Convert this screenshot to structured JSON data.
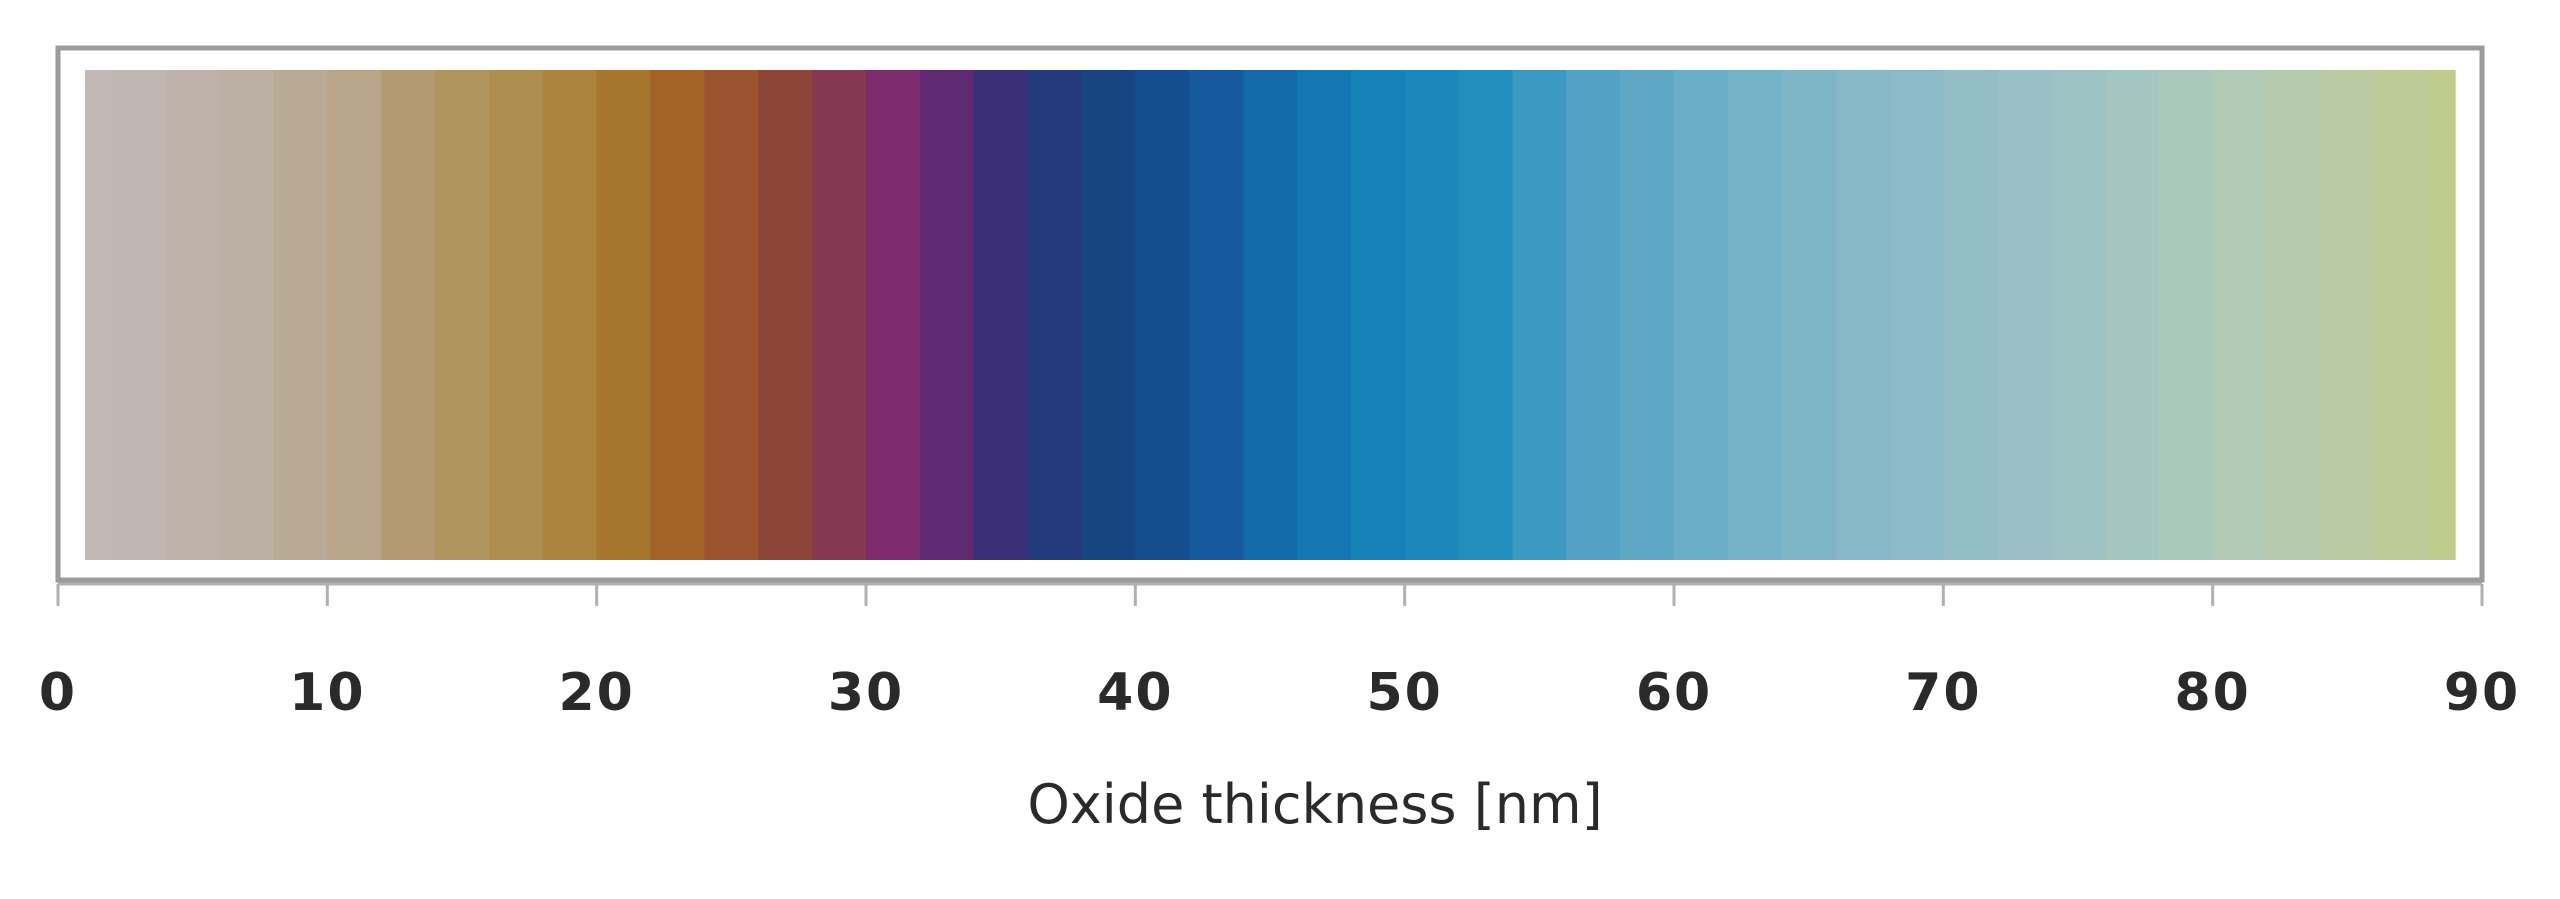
{
  "chart_data": {
    "type": "heatmap",
    "xlabel": "Oxide thickness [nm]",
    "xlim": [
      0,
      90
    ],
    "ticks": [
      0,
      10,
      20,
      30,
      40,
      50,
      60,
      70,
      80,
      90
    ],
    "tick_labels": [
      "0",
      "10",
      "20",
      "30",
      "40",
      "50",
      "60",
      "70",
      "80",
      "90"
    ],
    "band_width_nm": 2,
    "bands": [
      {
        "x0": 1,
        "x1": 2,
        "color": "#c2b8b6"
      },
      {
        "x0": 2,
        "x1": 4,
        "color": "#c0b6b2"
      },
      {
        "x0": 4,
        "x1": 6,
        "color": "#beb2aa"
      },
      {
        "x0": 6,
        "x1": 8,
        "color": "#bcb0a4"
      },
      {
        "x0": 8,
        "x1": 10,
        "color": "#b8aa94"
      },
      {
        "x0": 10,
        "x1": 12,
        "color": "#b8a58a"
      },
      {
        "x0": 12,
        "x1": 14,
        "color": "#b49a72"
      },
      {
        "x0": 14,
        "x1": 16,
        "color": "#b0965e"
      },
      {
        "x0": 16,
        "x1": 18,
        "color": "#ad8e50"
      },
      {
        "x0": 18,
        "x1": 20,
        "color": "#ab833c"
      },
      {
        "x0": 20,
        "x1": 22,
        "color": "#a7762e"
      },
      {
        "x0": 22,
        "x1": 24,
        "color": "#a36228"
      },
      {
        "x0": 24,
        "x1": 26,
        "color": "#9c5430"
      },
      {
        "x0": 26,
        "x1": 28,
        "color": "#8d4538"
      },
      {
        "x0": 28,
        "x1": 30,
        "color": "#843852"
      },
      {
        "x0": 30,
        "x1": 32,
        "color": "#7c2c6c"
      },
      {
        "x0": 32,
        "x1": 34,
        "color": "#5f2a72"
      },
      {
        "x0": 34,
        "x1": 36,
        "color": "#3b3078"
      },
      {
        "x0": 36,
        "x1": 38,
        "color": "#243a7c"
      },
      {
        "x0": 38,
        "x1": 40,
        "color": "#184482"
      },
      {
        "x0": 40,
        "x1": 42,
        "color": "#144e90"
      },
      {
        "x0": 42,
        "x1": 44,
        "color": "#16599c"
      },
      {
        "x0": 44,
        "x1": 46,
        "color": "#146aa8"
      },
      {
        "x0": 46,
        "x1": 48,
        "color": "#1476b2"
      },
      {
        "x0": 48,
        "x1": 50,
        "color": "#1582b8"
      },
      {
        "x0": 50,
        "x1": 52,
        "color": "#1a88ba"
      },
      {
        "x0": 52,
        "x1": 54,
        "color": "#2290be"
      },
      {
        "x0": 54,
        "x1": 56,
        "color": "#3c9ac2"
      },
      {
        "x0": 56,
        "x1": 58,
        "color": "#52a2c6"
      },
      {
        "x0": 58,
        "x1": 60,
        "color": "#5ea8c6"
      },
      {
        "x0": 60,
        "x1": 62,
        "color": "#6aaec8"
      },
      {
        "x0": 62,
        "x1": 64,
        "color": "#74b2c8"
      },
      {
        "x0": 64,
        "x1": 66,
        "color": "#7eb6c8"
      },
      {
        "x0": 66,
        "x1": 68,
        "color": "#86b8c8"
      },
      {
        "x0": 68,
        "x1": 70,
        "color": "#8cbac8"
      },
      {
        "x0": 70,
        "x1": 72,
        "color": "#94bec6"
      },
      {
        "x0": 72,
        "x1": 74,
        "color": "#98c0c6"
      },
      {
        "x0": 74,
        "x1": 76,
        "color": "#9cc2c4"
      },
      {
        "x0": 76,
        "x1": 78,
        "color": "#a4c6c2"
      },
      {
        "x0": 78,
        "x1": 80,
        "color": "#aac8bc"
      },
      {
        "x0": 80,
        "x1": 82,
        "color": "#b0cab6"
      },
      {
        "x0": 82,
        "x1": 84,
        "color": "#b6cbae"
      },
      {
        "x0": 84,
        "x1": 86,
        "color": "#bacba4"
      },
      {
        "x0": 86,
        "x1": 88,
        "color": "#bccb98"
      },
      {
        "x0": 88,
        "x1": 89,
        "color": "#c0cc8e"
      }
    ],
    "grid": false
  }
}
